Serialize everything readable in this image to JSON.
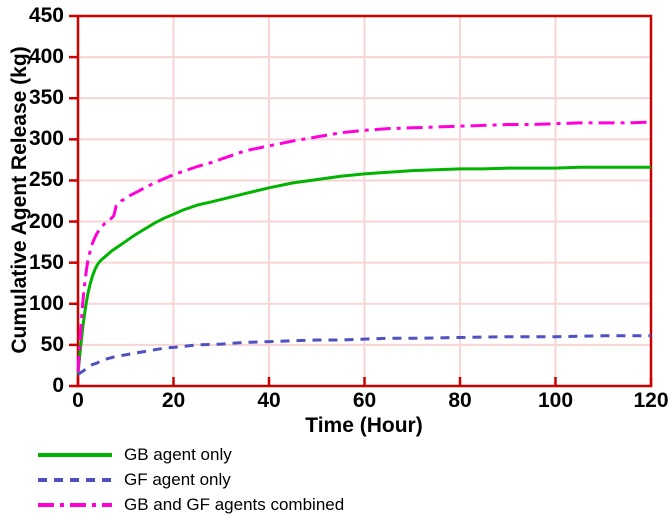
{
  "chart_data": {
    "type": "line",
    "title": "",
    "xlabel": "Time (Hour)",
    "ylabel": "Cumulative Agent Release (kg)",
    "xlim": [
      0,
      120
    ],
    "ylim": [
      0,
      450
    ],
    "x_ticks": [
      0,
      20,
      40,
      60,
      80,
      100,
      120
    ],
    "y_ticks": [
      0,
      50,
      100,
      150,
      200,
      250,
      300,
      350,
      400,
      450
    ],
    "grid": true,
    "legend_position": "below-left",
    "axis_color": "#cc0000",
    "grid_color": "#f7d5d5",
    "text_color": "#000000",
    "series": [
      {
        "name": "GB agent only",
        "color": "#00b400",
        "line_style": "solid",
        "points": [
          [
            0,
            15
          ],
          [
            0.5,
            45
          ],
          [
            1,
            72
          ],
          [
            1.5,
            93
          ],
          [
            2,
            110
          ],
          [
            2.5,
            123
          ],
          [
            3,
            133
          ],
          [
            3.5,
            141
          ],
          [
            4,
            147
          ],
          [
            4.5,
            151
          ],
          [
            5,
            154
          ],
          [
            6,
            159
          ],
          [
            7,
            164
          ],
          [
            8,
            168
          ],
          [
            9,
            172
          ],
          [
            10,
            176
          ],
          [
            12,
            184
          ],
          [
            14,
            191
          ],
          [
            16,
            198
          ],
          [
            18,
            204
          ],
          [
            20,
            209
          ],
          [
            22,
            214
          ],
          [
            25,
            220
          ],
          [
            28,
            224
          ],
          [
            30,
            227
          ],
          [
            35,
            234
          ],
          [
            40,
            241
          ],
          [
            45,
            247
          ],
          [
            50,
            251
          ],
          [
            55,
            255
          ],
          [
            60,
            258
          ],
          [
            65,
            260
          ],
          [
            70,
            262
          ],
          [
            75,
            263
          ],
          [
            80,
            264
          ],
          [
            85,
            264
          ],
          [
            90,
            265
          ],
          [
            95,
            265
          ],
          [
            100,
            265
          ],
          [
            105,
            266
          ],
          [
            110,
            266
          ],
          [
            115,
            266
          ],
          [
            120,
            266
          ]
        ]
      },
      {
        "name": "GF agent only",
        "color": "#4d52c0",
        "line_style": "dashed",
        "points": [
          [
            0,
            14
          ],
          [
            1,
            18
          ],
          [
            2,
            22
          ],
          [
            3,
            26
          ],
          [
            4,
            28
          ],
          [
            5,
            31
          ],
          [
            6,
            33
          ],
          [
            8,
            36
          ],
          [
            10,
            38
          ],
          [
            12,
            40
          ],
          [
            14,
            42
          ],
          [
            16,
            44
          ],
          [
            18,
            46
          ],
          [
            20,
            47
          ],
          [
            25,
            50
          ],
          [
            30,
            51
          ],
          [
            35,
            53
          ],
          [
            40,
            54
          ],
          [
            45,
            55
          ],
          [
            50,
            56
          ],
          [
            55,
            56
          ],
          [
            60,
            57
          ],
          [
            65,
            58
          ],
          [
            70,
            58
          ],
          [
            80,
            59
          ],
          [
            90,
            60
          ],
          [
            100,
            60
          ],
          [
            110,
            61
          ],
          [
            120,
            61
          ]
        ]
      },
      {
        "name": "GB and GF agents combined",
        "color": "#ff00d8",
        "line_style": "dashdot",
        "points": [
          [
            0,
            17
          ],
          [
            0.5,
            62
          ],
          [
            1,
            102
          ],
          [
            1.5,
            130
          ],
          [
            2,
            150
          ],
          [
            2.5,
            163
          ],
          [
            3,
            173
          ],
          [
            3.5,
            180
          ],
          [
            4,
            186
          ],
          [
            4.5,
            190
          ],
          [
            5,
            194
          ],
          [
            5.5,
            197
          ],
          [
            6,
            200
          ],
          [
            6.5,
            202
          ],
          [
            7,
            204
          ],
          [
            7.5,
            207
          ],
          [
            8,
            219
          ],
          [
            8.5,
            222
          ],
          [
            9,
            225
          ],
          [
            10,
            228
          ],
          [
            11,
            232
          ],
          [
            12,
            235
          ],
          [
            14,
            241
          ],
          [
            16,
            247
          ],
          [
            18,
            252
          ],
          [
            20,
            257
          ],
          [
            22,
            261
          ],
          [
            25,
            267
          ],
          [
            28,
            272
          ],
          [
            30,
            276
          ],
          [
            35,
            286
          ],
          [
            40,
            292
          ],
          [
            45,
            298
          ],
          [
            50,
            303
          ],
          [
            55,
            308
          ],
          [
            60,
            311
          ],
          [
            65,
            313
          ],
          [
            70,
            314
          ],
          [
            75,
            315
          ],
          [
            80,
            316
          ],
          [
            85,
            317
          ],
          [
            90,
            318
          ],
          [
            95,
            318
          ],
          [
            100,
            319
          ],
          [
            105,
            320
          ],
          [
            110,
            320
          ],
          [
            115,
            320
          ],
          [
            120,
            321
          ]
        ]
      }
    ]
  }
}
